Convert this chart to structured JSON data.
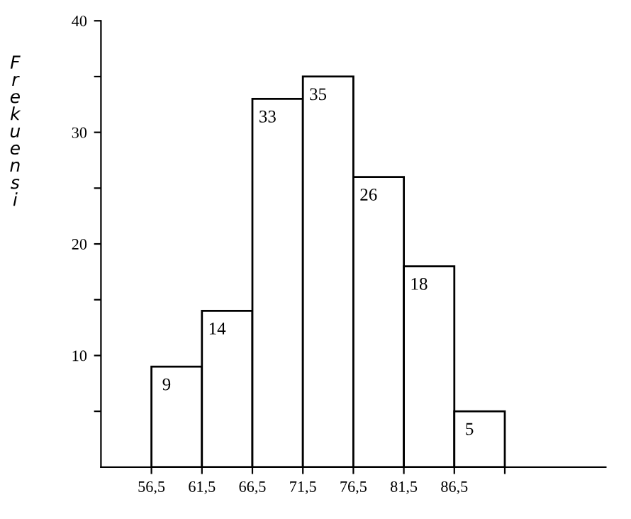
{
  "chart_data": {
    "type": "histogram",
    "ylabel": "Frekuensi",
    "bins": [
      56.5,
      61.5,
      66.5,
      71.5,
      76.5,
      81.5,
      86.5,
      91.5
    ],
    "values": [
      9,
      14,
      33,
      35,
      26,
      18,
      5
    ],
    "color": "#ffffff",
    "data_labels": true,
    "xlim": [
      51.5,
      101.5
    ],
    "xticks": [
      {
        "value": 56.5,
        "label": "56,5"
      },
      {
        "value": 61.5,
        "label": "61,5"
      },
      {
        "value": 66.5,
        "label": "66,5"
      },
      {
        "value": 71.5,
        "label": "71,5"
      },
      {
        "value": 76.5,
        "label": "76,5"
      },
      {
        "value": 81.5,
        "label": "81,5"
      },
      {
        "value": 86.5,
        "label": "86,5"
      },
      {
        "value": 91.5,
        "label": null
      }
    ],
    "ylim": [
      0,
      40
    ],
    "yticks": [
      {
        "value": 5,
        "label": null
      },
      10,
      {
        "value": 15,
        "label": null
      },
      20,
      {
        "value": 25,
        "label": null
      },
      30,
      {
        "value": 35,
        "label": null
      },
      40
    ],
    "grid": false
  }
}
